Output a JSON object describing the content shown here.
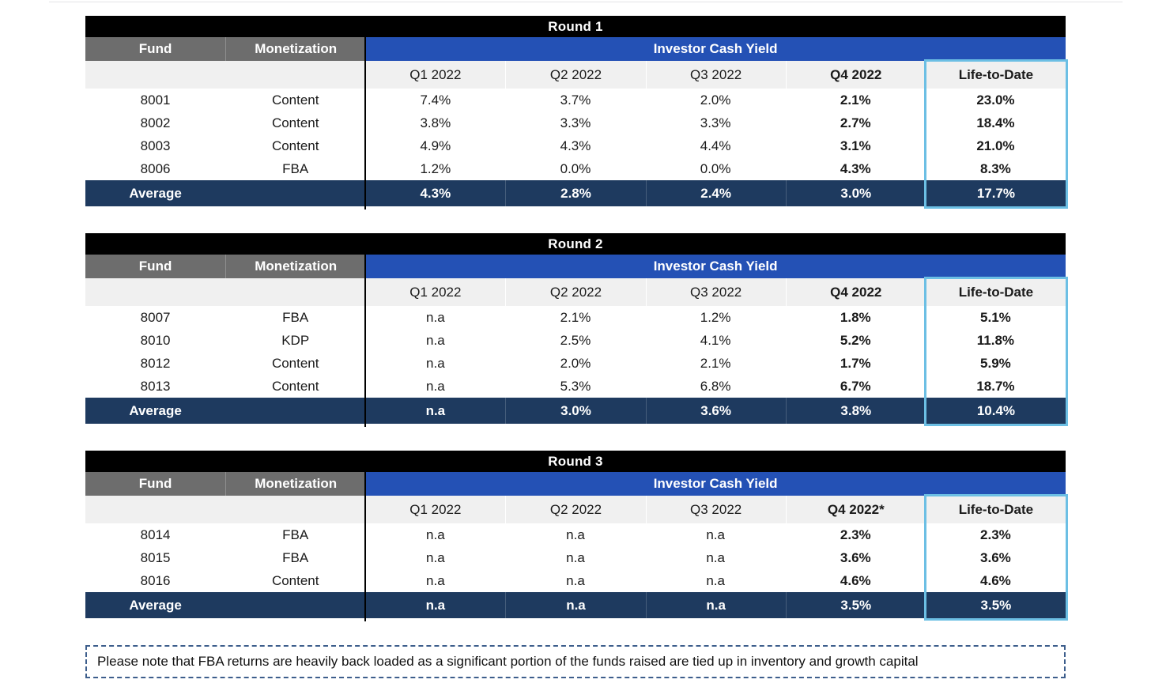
{
  "colors": {
    "title_bar_bg": "#000000",
    "fund_header_bg": "#6d6d6d",
    "yield_header_bg": "#2451b5",
    "subheader_bg": "#f0f0f0",
    "average_row_bg": "#1e3a5f",
    "life_to_date_outline": "#6cbfe4",
    "note_border": "#3d5e8c"
  },
  "tables": [
    {
      "round_label": "Round 1",
      "fund_header": "Fund",
      "monetization_header": "Monetization",
      "yield_header": "Investor Cash Yield",
      "quarter_headers": [
        "Q1 2022",
        "Q2 2022",
        "Q3 2022",
        "Q4 2022",
        "Life-to-Date"
      ],
      "rows": [
        {
          "fund": "8001",
          "monetization": "Content",
          "values": [
            "7.4%",
            "3.7%",
            "2.0%",
            "2.1%",
            "23.0%"
          ]
        },
        {
          "fund": "8002",
          "monetization": "Content",
          "values": [
            "3.8%",
            "3.3%",
            "3.3%",
            "2.7%",
            "18.4%"
          ]
        },
        {
          "fund": "8003",
          "monetization": "Content",
          "values": [
            "4.9%",
            "4.3%",
            "4.4%",
            "3.1%",
            "21.0%"
          ]
        },
        {
          "fund": "8006",
          "monetization": "FBA",
          "values": [
            "1.2%",
            "0.0%",
            "0.0%",
            "4.3%",
            "8.3%"
          ]
        }
      ],
      "average_label": "Average",
      "average_values": [
        "4.3%",
        "2.8%",
        "2.4%",
        "3.0%",
        "17.7%"
      ]
    },
    {
      "round_label": "Round 2",
      "fund_header": "Fund",
      "monetization_header": "Monetization",
      "yield_header": "Investor Cash Yield",
      "quarter_headers": [
        "Q1 2022",
        "Q2 2022",
        "Q3 2022",
        "Q4 2022",
        "Life-to-Date"
      ],
      "rows": [
        {
          "fund": "8007",
          "monetization": "FBA",
          "values": [
            "n.a",
            "2.1%",
            "1.2%",
            "1.8%",
            "5.1%"
          ]
        },
        {
          "fund": "8010",
          "monetization": "KDP",
          "values": [
            "n.a",
            "2.5%",
            "4.1%",
            "5.2%",
            "11.8%"
          ]
        },
        {
          "fund": "8012",
          "monetization": "Content",
          "values": [
            "n.a",
            "2.0%",
            "2.1%",
            "1.7%",
            "5.9%"
          ]
        },
        {
          "fund": "8013",
          "monetization": "Content",
          "values": [
            "n.a",
            "5.3%",
            "6.8%",
            "6.7%",
            "18.7%"
          ]
        }
      ],
      "average_label": "Average",
      "average_values": [
        "n.a",
        "3.0%",
        "3.6%",
        "3.8%",
        "10.4%"
      ]
    },
    {
      "round_label": "Round 3",
      "fund_header": "Fund",
      "monetization_header": "Monetization",
      "yield_header": "Investor Cash Yield",
      "quarter_headers": [
        "Q1 2022",
        "Q2 2022",
        "Q3 2022",
        "Q4 2022*",
        "Life-to-Date"
      ],
      "rows": [
        {
          "fund": "8014",
          "monetization": "FBA",
          "values": [
            "n.a",
            "n.a",
            "n.a",
            "2.3%",
            "2.3%"
          ]
        },
        {
          "fund": "8015",
          "monetization": "FBA",
          "values": [
            "n.a",
            "n.a",
            "n.a",
            "3.6%",
            "3.6%"
          ]
        },
        {
          "fund": "8016",
          "monetization": "Content",
          "values": [
            "n.a",
            "n.a",
            "n.a",
            "4.6%",
            "4.6%"
          ]
        }
      ],
      "average_label": "Average",
      "average_values": [
        "n.a",
        "n.a",
        "n.a",
        "3.5%",
        "3.5%"
      ]
    }
  ],
  "note": "Please note that FBA returns are heavily back loaded as a significant portion of the funds raised are tied up in inventory and growth capital"
}
